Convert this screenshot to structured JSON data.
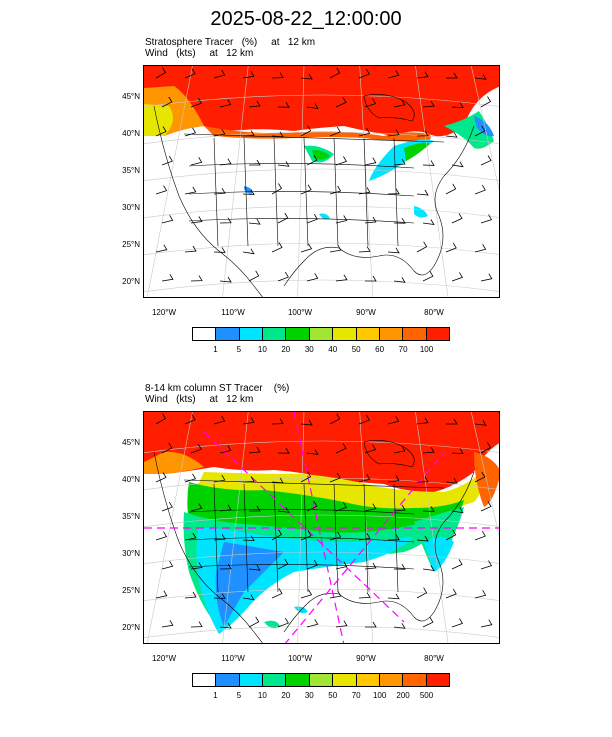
{
  "title": "2025-08-22_12:00:00",
  "panels": [
    {
      "title_line1": "Stratosphere Tracer   (%)     at   12 km",
      "title_line2": "Wind   (kts)     at   12 km",
      "lat_labels": [
        "45°N",
        "40°N",
        "35°N",
        "30°N",
        "25°N",
        "20°N"
      ],
      "lon_labels": [
        "120°W",
        "110°W",
        "100°W",
        "90°W",
        "80°W"
      ],
      "colorbar": {
        "colors": [
          "#ffffff",
          "#1e90ff",
          "#00e5ff",
          "#00e88c",
          "#00d200",
          "#a0e632",
          "#e6e600",
          "#ffc800",
          "#ff9600",
          "#ff6400",
          "#ff1e00"
        ],
        "labels": [
          "1",
          "5",
          "10",
          "20",
          "30",
          "40",
          "50",
          "60",
          "70",
          "100"
        ]
      }
    },
    {
      "title_line1": "8-14 km column ST Tracer    (%)",
      "title_line2": "Wind   (kts)     at   12 km",
      "lat_labels": [
        "45°N",
        "40°N",
        "35°N",
        "30°N",
        "25°N",
        "20°N"
      ],
      "lon_labels": [
        "120°W",
        "110°W",
        "100°W",
        "90°W",
        "80°W"
      ],
      "colorbar": {
        "colors": [
          "#ffffff",
          "#1e90ff",
          "#00e5ff",
          "#00e88c",
          "#00d200",
          "#a0e632",
          "#e6e600",
          "#ffc800",
          "#ff9600",
          "#ff6400",
          "#ff1e00"
        ],
        "labels": [
          "1",
          "5",
          "10",
          "20",
          "30",
          "50",
          "70",
          "100",
          "200",
          "500"
        ]
      }
    }
  ]
}
